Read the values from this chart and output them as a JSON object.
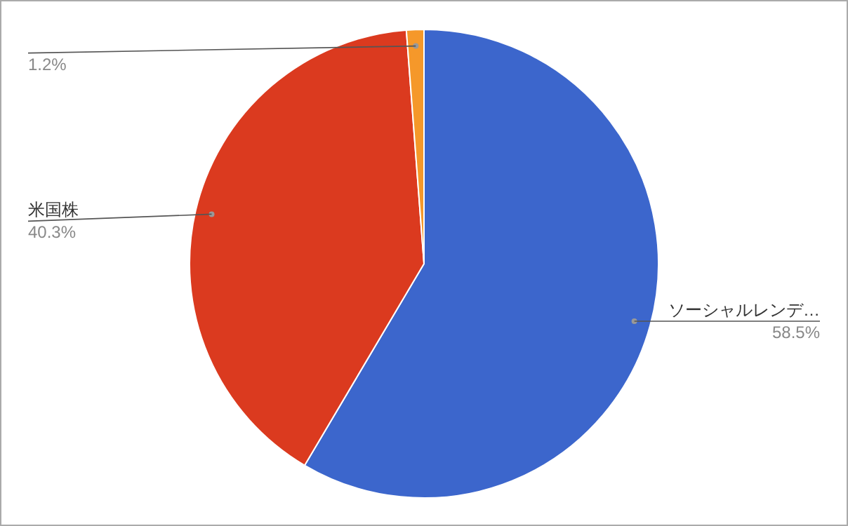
{
  "chart_data": {
    "type": "pie",
    "categories": [
      "ソーシャルレンデ…",
      "米国株",
      null
    ],
    "values": [
      58.5,
      40.3,
      1.2
    ],
    "colors": [
      "#3c66cc",
      "#db3a1f",
      "#f5982a"
    ],
    "value_labels": [
      "58.5%",
      "40.3%",
      "1.2%"
    ]
  }
}
